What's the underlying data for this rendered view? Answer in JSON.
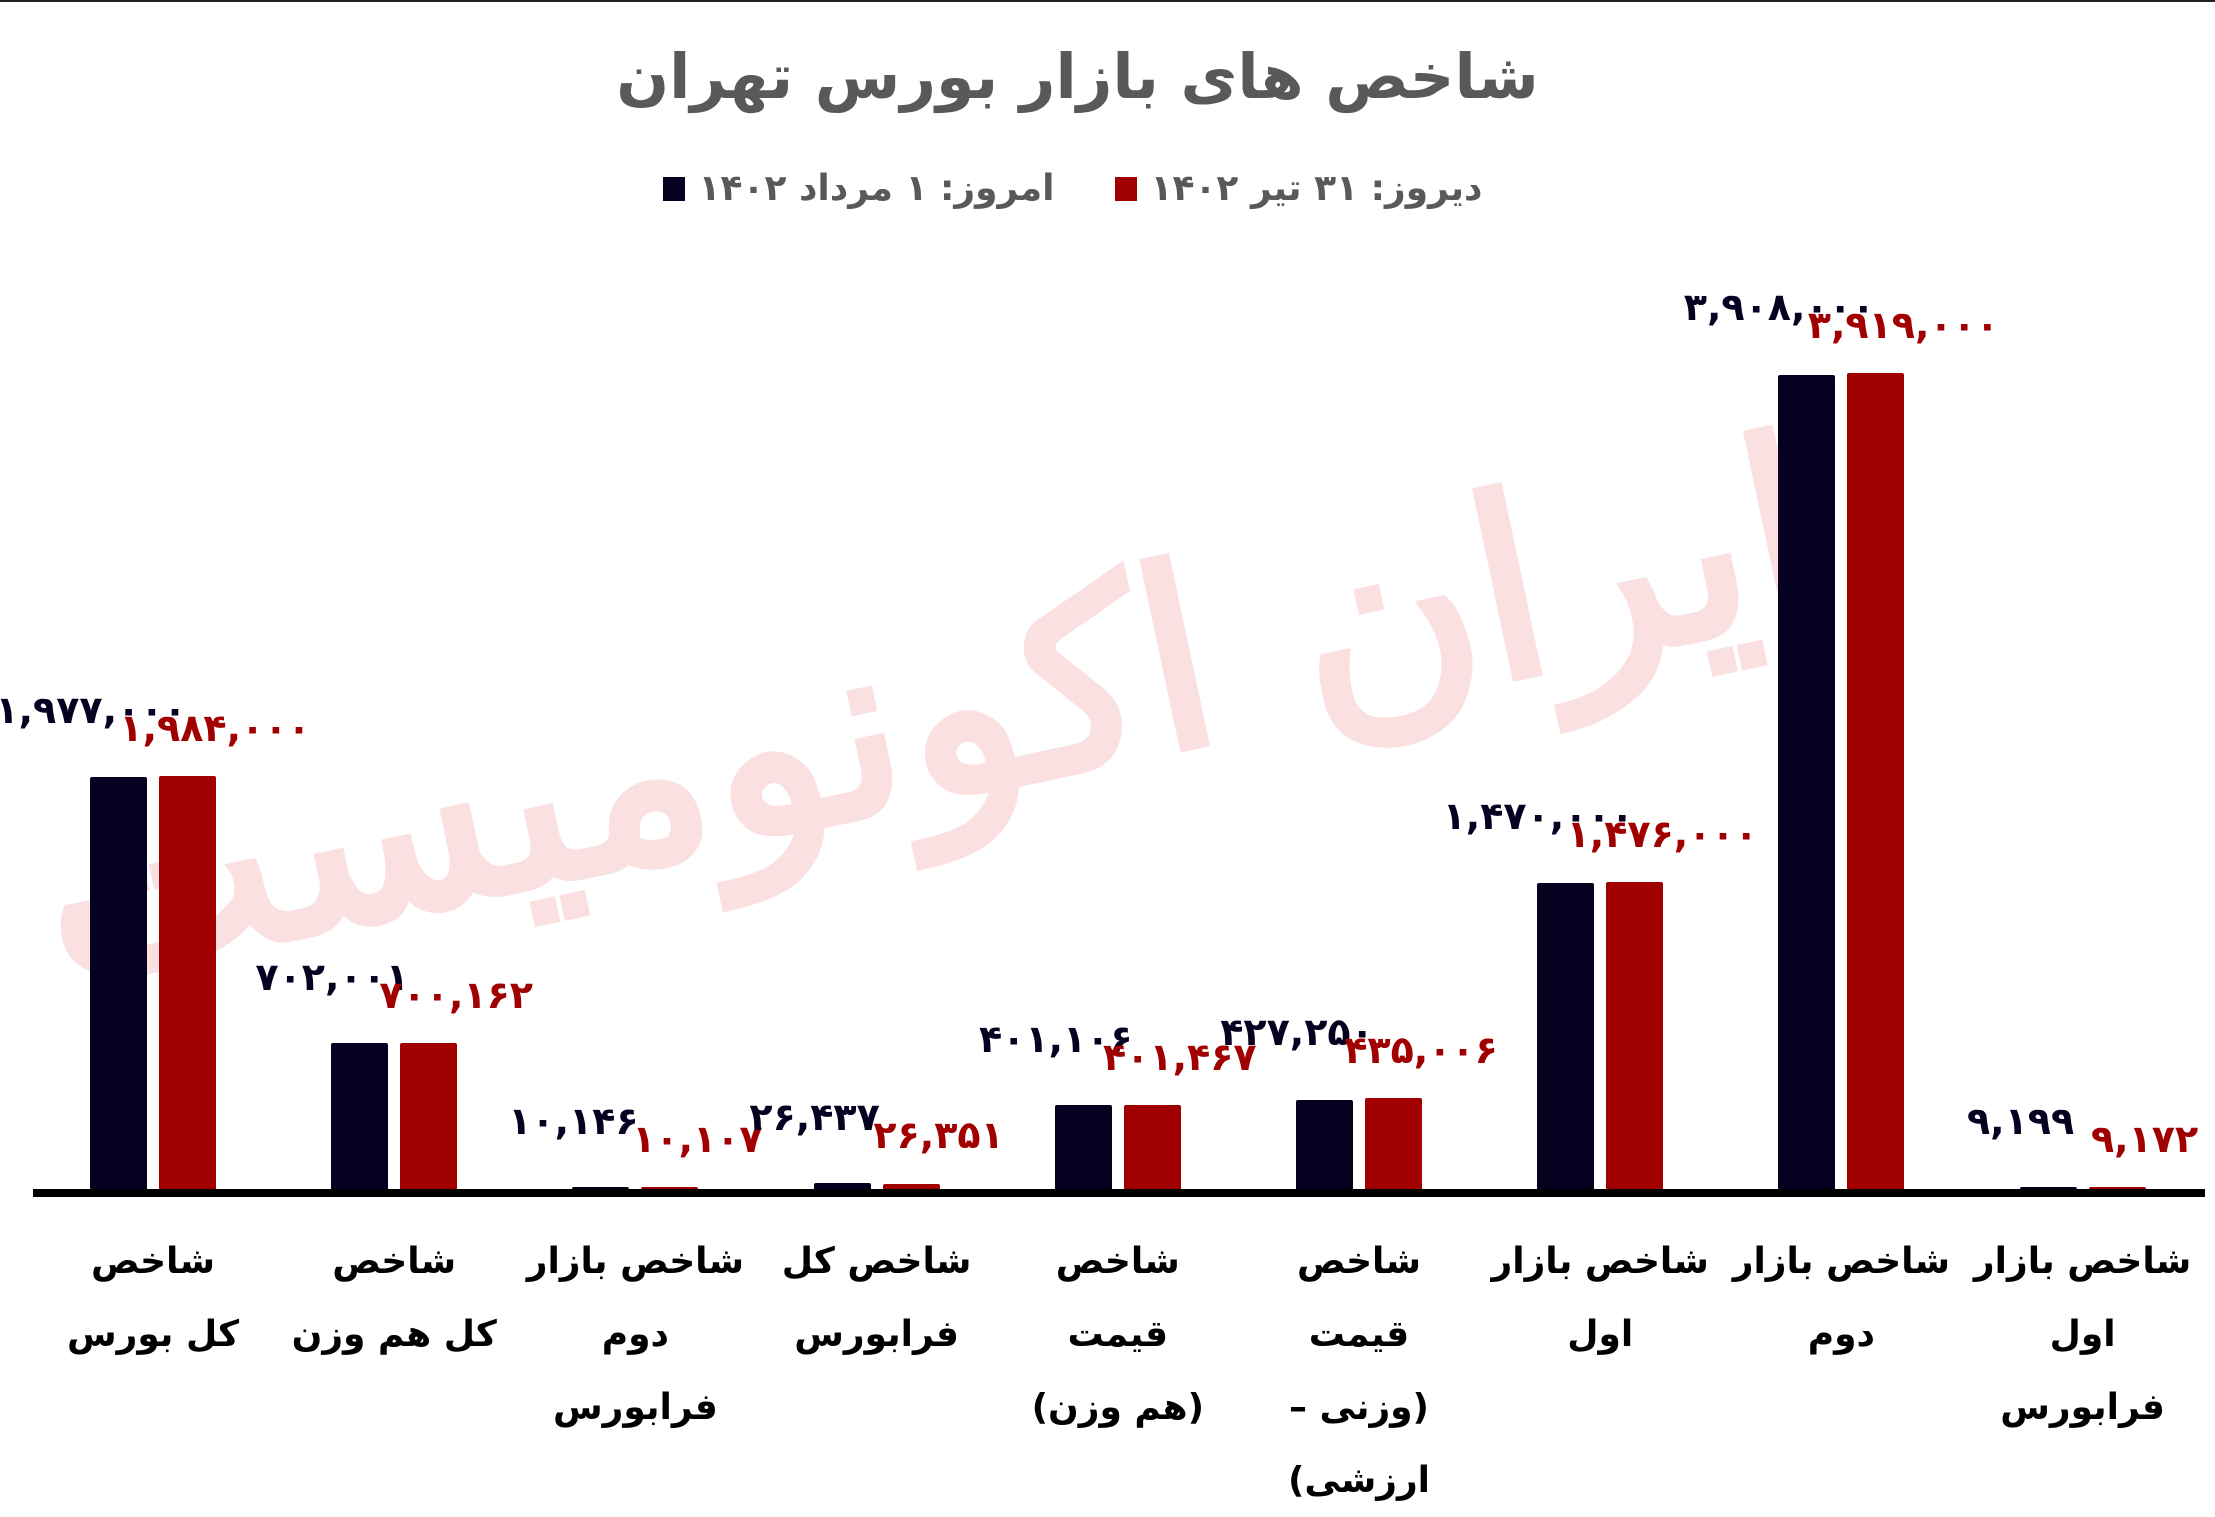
{
  "title": "شاخص های بازار بورس تهران",
  "legend": [
    {
      "label": "دیروز: ۳۱ تیر ۱۴۰۲",
      "color": "#a10000"
    },
    {
      "label": "امروز: ۱ مرداد ۱۴۰۲",
      "color": "#060021"
    }
  ],
  "watermark": "ایران اکونومیست",
  "colors": {
    "today": "#060021",
    "yesterday": "#a10000",
    "axis": "#000000",
    "title": "#595959"
  },
  "chart_data": {
    "type": "bar",
    "title": "شاخص های بازار بورس تهران",
    "xlabel": "",
    "ylabel": "",
    "grid": false,
    "legend_position": "top",
    "categories": [
      "شاخص کل بورس",
      "شاخص کل هم وزن",
      "شاخص بازار دوم فرابورس",
      "شاخص کل فرابورس",
      "شاخص قیمت (هم وزن)",
      "شاخص قیمت (وزنی – ارزشی)",
      "شاخص بازار اول",
      "شاخص بازار دوم",
      "شاخص بازار اول فرابورس"
    ],
    "category_lines": [
      [
        "شاخص",
        "کل بورس"
      ],
      [
        "شاخص",
        "کل هم وزن"
      ],
      [
        "شاخص بازار",
        "دوم فرابورس"
      ],
      [
        "شاخص کل",
        "فرابورس"
      ],
      [
        "شاخص قیمت",
        "(هم وزن)"
      ],
      [
        "شاخص قیمت",
        "(وزنی –",
        "ارزشی)"
      ],
      [
        "شاخص بازار اول"
      ],
      [
        "شاخص بازار",
        "دوم"
      ],
      [
        "شاخص بازار اول",
        "فرابورس"
      ]
    ],
    "series": [
      {
        "name": "امروز: ۱ مرداد ۱۴۰۲",
        "color": "#060021",
        "values": [
          1977000,
          702001,
          10146,
          26437,
          401106,
          427250,
          1470000,
          3908000,
          9199
        ],
        "labels": [
          "۱,۹۷۷,۰۰۰",
          "۷۰۲,۰۰۱",
          "۱۰,۱۴۶",
          "۲۶,۴۳۷",
          "۴۰۱,۱۰۶",
          "۴۲۷,۲۵۰",
          "۱,۴۷۰,۰۰۰",
          "۳,۹۰۸,۰۰۰",
          "۹,۱۹۹"
        ]
      },
      {
        "name": "دیروز: ۳۱ تیر ۱۴۰۲",
        "color": "#a10000",
        "values": [
          1984000,
          700162,
          10107,
          26351,
          401467,
          435006,
          1476000,
          3919000,
          9172
        ],
        "labels": [
          "۱,۹۸۴,۰۰۰",
          "۷۰۰,۱۶۲",
          "۱۰,۱۰۷",
          "۲۶,۳۵۱",
          "۴۰۱,۴۶۷",
          "۴۳۵,۰۰۶",
          "۱,۴۷۶,۰۰۰",
          "۳,۹۱۹,۰۰۰",
          "۹,۱۷۲"
        ]
      }
    ],
    "ylim": [
      0,
      4000000
    ]
  }
}
